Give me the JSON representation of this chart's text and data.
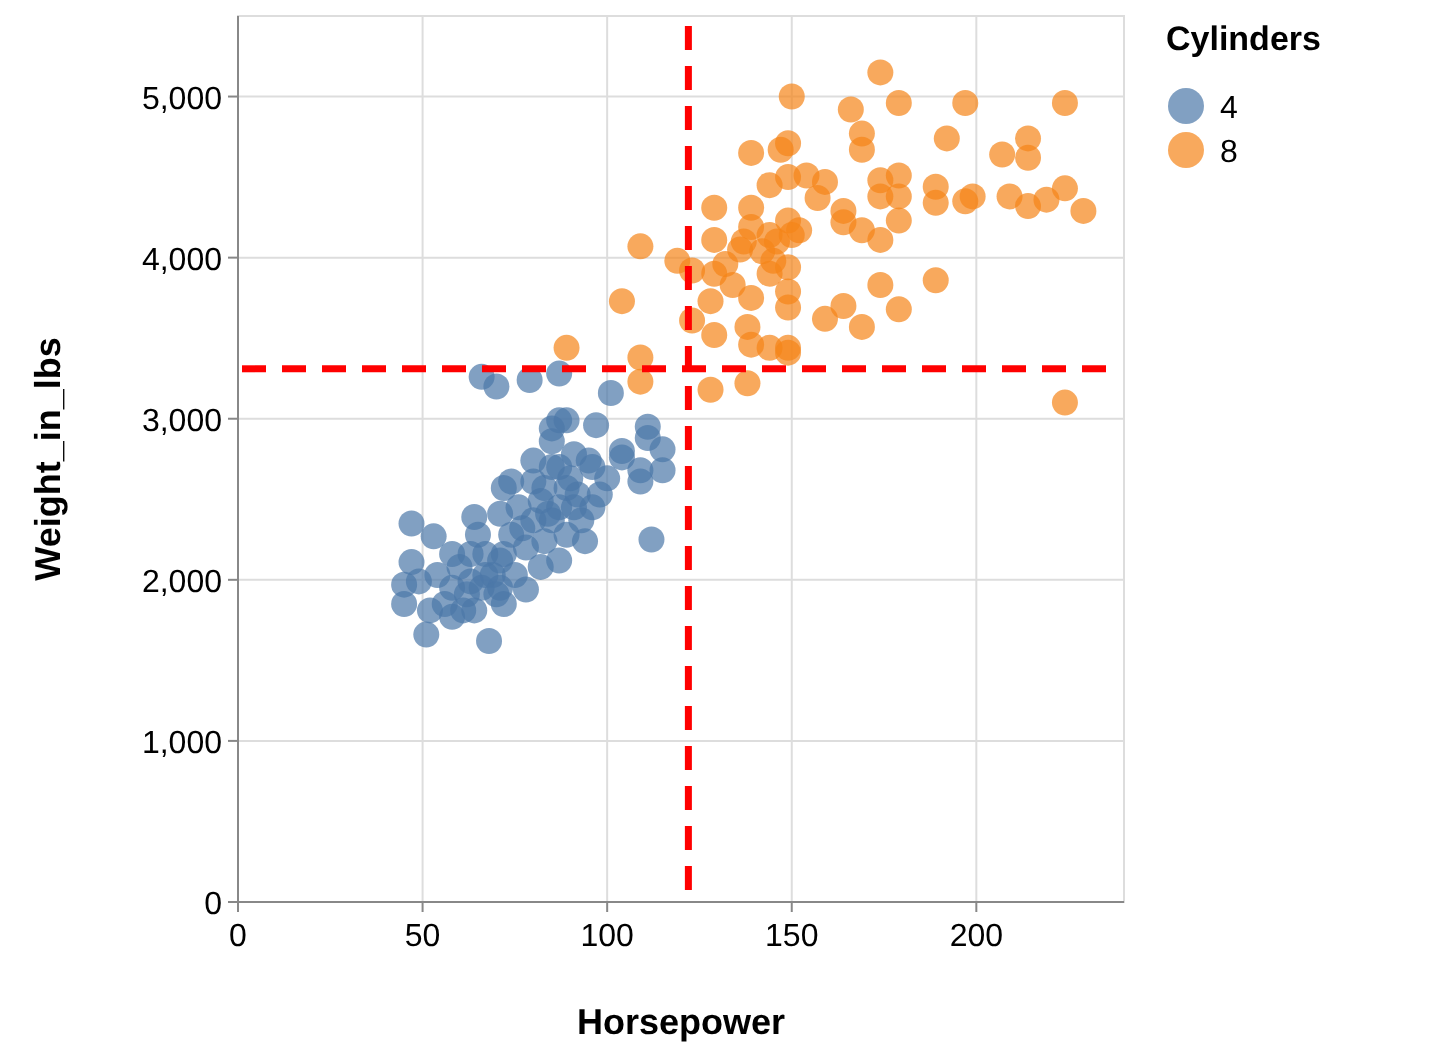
{
  "chart_data": {
    "type": "scatter",
    "xlabel": "Horsepower",
    "ylabel": "Weight_in_lbs",
    "legend_title": "Cylinders",
    "legend": "top right",
    "grid": true,
    "marker": "circle",
    "xlim": [
      0,
      240
    ],
    "ylim": [
      0,
      5500
    ],
    "xticks": [
      0,
      50,
      100,
      150,
      200
    ],
    "yticks": [
      0,
      {
        "value": 1000,
        "label": "1,000"
      },
      {
        "value": 2000,
        "label": "2,000"
      },
      {
        "value": 3000,
        "label": "3,000"
      },
      {
        "value": 4000,
        "label": "4,000"
      },
      {
        "value": 5000,
        "label": "5,000"
      }
    ],
    "ref_lines": [
      {
        "axis": "x",
        "value": 122,
        "color": "#ff0000",
        "line_style": "dashed"
      },
      {
        "axis": "y",
        "value": 3310,
        "color": "#ff0000",
        "line_style": "dashed"
      }
    ],
    "series": [
      {
        "name": "4",
        "color": "#4c78a8",
        "x": [
          66,
          70,
          79,
          87,
          101,
          87,
          89,
          97,
          111,
          111,
          115,
          104,
          104,
          109,
          109,
          115,
          112,
          100,
          95,
          47,
          53,
          64,
          71,
          72,
          80,
          47,
          45,
          45,
          52,
          51,
          58,
          68,
          78,
          72,
          64,
          58,
          60,
          67,
          74,
          82,
          87,
          94,
          96,
          89,
          85,
          82,
          76,
          69,
          62,
          54,
          49,
          58,
          65,
          71,
          78,
          85,
          92,
          85,
          91,
          80,
          74,
          87,
          89,
          83,
          93,
          98,
          66,
          71,
          80,
          63,
          87,
          90,
          83,
          77,
          72,
          67,
          63,
          56,
          61,
          70,
          75,
          84,
          91,
          96,
          85
        ],
        "values": [
          3260,
          3200,
          3240,
          3280,
          3160,
          2990,
          2990,
          2960,
          2950,
          2880,
          2810,
          2800,
          2760,
          2680,
          2610,
          2680,
          2250,
          2630,
          2740,
          2350,
          2270,
          2390,
          2410,
          2570,
          2740,
          2110,
          1970,
          1850,
          1810,
          1660,
          1770,
          1620,
          1940,
          1850,
          1810,
          1950,
          2080,
          2160,
          2280,
          2080,
          2120,
          2240,
          2450,
          2570,
          2700,
          2490,
          2450,
          2030,
          1910,
          2030,
          1990,
          2160,
          2280,
          2120,
          2200,
          2370,
          2530,
          2860,
          2780,
          2610,
          2610,
          2450,
          2280,
          2240,
          2370,
          2530,
          1950,
          1950,
          2370,
          2160,
          2700,
          2630,
          2570,
          2320,
          2160,
          2030,
          1990,
          1850,
          1810,
          1910,
          2030,
          2410,
          2450,
          2700,
          2940
        ]
      },
      {
        "name": "8",
        "color": "#f58518",
        "x": [
          174,
          150,
          166,
          179,
          197,
          224,
          169,
          169,
          192,
          214,
          207,
          214,
          139,
          147,
          149,
          149,
          144,
          154,
          159,
          179,
          174,
          189,
          174,
          179,
          189,
          197,
          199,
          209,
          214,
          219,
          224,
          229,
          157,
          129,
          139,
          164,
          164,
          169,
          174,
          179,
          129,
          136,
          139,
          144,
          149,
          152,
          142,
          109,
          119,
          123,
          129,
          134,
          139,
          144,
          149,
          149,
          149,
          128,
          159,
          164,
          169,
          179,
          174,
          189,
          104,
          123,
          129,
          138,
          139,
          144,
          149,
          149,
          89,
          109,
          109,
          128,
          138,
          224,
          146,
          150,
          145,
          132,
          137
        ],
        "values": [
          5150,
          5000,
          4920,
          4960,
          4960,
          4960,
          4770,
          4670,
          4740,
          4740,
          4640,
          4620,
          4650,
          4670,
          4710,
          4500,
          4450,
          4510,
          4470,
          4510,
          4480,
          4440,
          4380,
          4380,
          4340,
          4350,
          4380,
          4380,
          4320,
          4360,
          4430,
          4290,
          4370,
          4310,
          4310,
          4290,
          4220,
          4170,
          4110,
          4230,
          4110,
          4050,
          4190,
          4140,
          4230,
          4170,
          4040,
          4070,
          3980,
          3920,
          3900,
          3830,
          3750,
          3900,
          3940,
          3790,
          3690,
          3730,
          3620,
          3700,
          3570,
          3680,
          3830,
          3860,
          3730,
          3610,
          3520,
          3570,
          3460,
          3440,
          3440,
          3410,
          3440,
          3380,
          3230,
          3180,
          3220,
          3100,
          4100,
          4140,
          3980,
          3960,
          4100
        ]
      }
    ]
  }
}
